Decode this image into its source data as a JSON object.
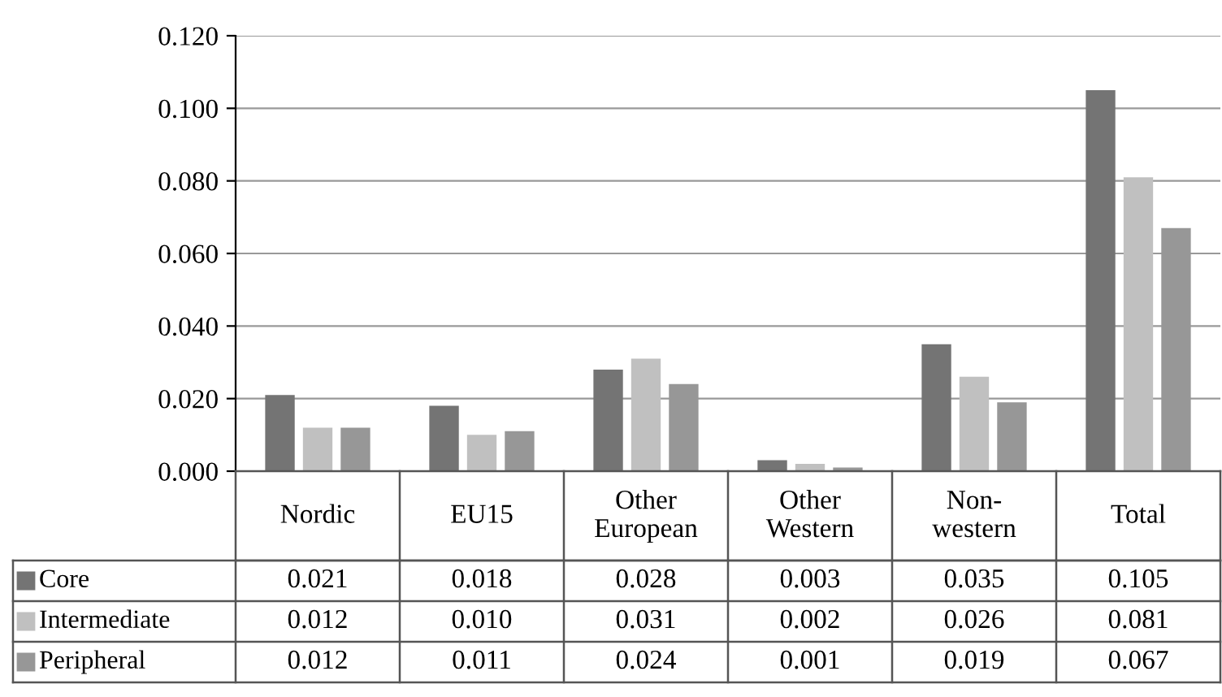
{
  "chart_data": {
    "type": "bar",
    "categories": [
      "Nordic",
      "EU15",
      "Other\nEuropean",
      "Other\nWestern",
      "Non-\nwestern",
      "Total"
    ],
    "series": [
      {
        "name": "Core",
        "color": "#747474",
        "values": [
          0.021,
          0.018,
          0.028,
          0.003,
          0.035,
          0.105
        ],
        "value_labels": [
          "0.021",
          "0.018",
          "0.028",
          "0.003",
          "0.035",
          "0.105"
        ]
      },
      {
        "name": "Intermediate",
        "color": "#c0c0c0",
        "values": [
          0.012,
          0.01,
          0.031,
          0.002,
          0.026,
          0.081
        ],
        "value_labels": [
          "0.012",
          "0.010",
          "0.031",
          "0.002",
          "0.026",
          "0.081"
        ]
      },
      {
        "name": "Peripheral",
        "color": "#979797",
        "values": [
          0.012,
          0.011,
          0.024,
          0.001,
          0.019,
          0.067
        ],
        "value_labels": [
          "0.012",
          "0.011",
          "0.024",
          "0.001",
          "0.019",
          "0.067"
        ]
      }
    ],
    "ylim": [
      0,
      0.12
    ],
    "yticks": [
      {
        "value": 0,
        "label": "0.000"
      },
      {
        "value": 0.02,
        "label": "0.020"
      },
      {
        "value": 0.04,
        "label": "0.040"
      },
      {
        "value": 0.06,
        "label": "0.060"
      },
      {
        "value": 0.08,
        "label": "0.080"
      },
      {
        "value": 0.1,
        "label": "0.100"
      },
      {
        "value": 0.12,
        "label": "0.120"
      }
    ],
    "grid": "y",
    "legend": "bottom left"
  }
}
